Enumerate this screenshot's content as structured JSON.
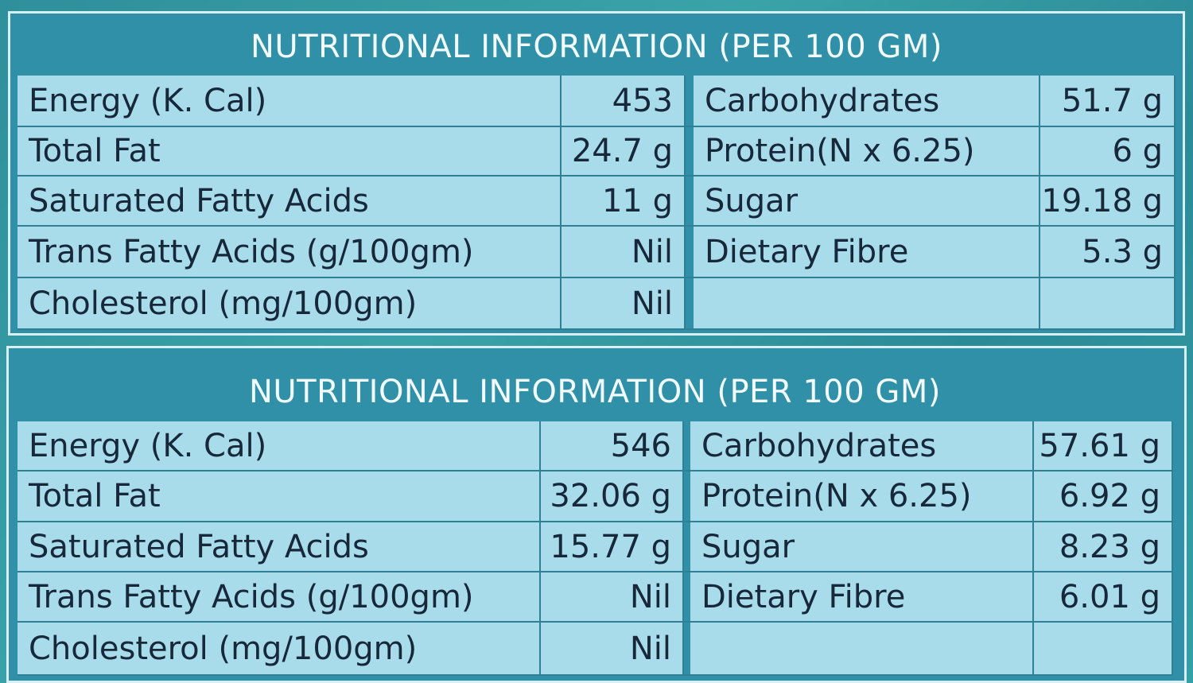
{
  "tables": [
    {
      "title": "NUTRITIONAL INFORMATION (PER 100 GM)",
      "rows": [
        [
          "Energy (K. Cal)",
          "453",
          "Carbohydrates",
          "51.7 g"
        ],
        [
          "Total Fat",
          "24.7 g",
          "Protein(N x 6.25)",
          "6 g"
        ],
        [
          "Saturated Fatty Acids",
          "11 g",
          "Sugar",
          "19.18 g"
        ],
        [
          "Trans Fatty Acids (g/100gm)",
          "Nil",
          "Dietary Fibre",
          "5.3 g"
        ],
        [
          "Cholesterol (mg/100gm)",
          "Nil"
        ]
      ]
    },
    {
      "title": "NUTRITIONAL INFORMATION (PER 100 GM)",
      "rows": [
        [
          "Energy (K. Cal)",
          "546",
          "Carbohydrates",
          "57.61 g"
        ],
        [
          "Total Fat",
          "32.06 g",
          "Protein(N x 6.25)",
          "6.92 g"
        ],
        [
          "Saturated Fatty Acids",
          "15.77 g",
          "Sugar",
          "8.23 g"
        ],
        [
          "Trans Fatty Acids (g/100gm)",
          "Nil",
          "Dietary Fibre",
          "6.01 g"
        ],
        [
          "Cholesterol (mg/100gm)",
          "Nil"
        ]
      ]
    }
  ]
}
